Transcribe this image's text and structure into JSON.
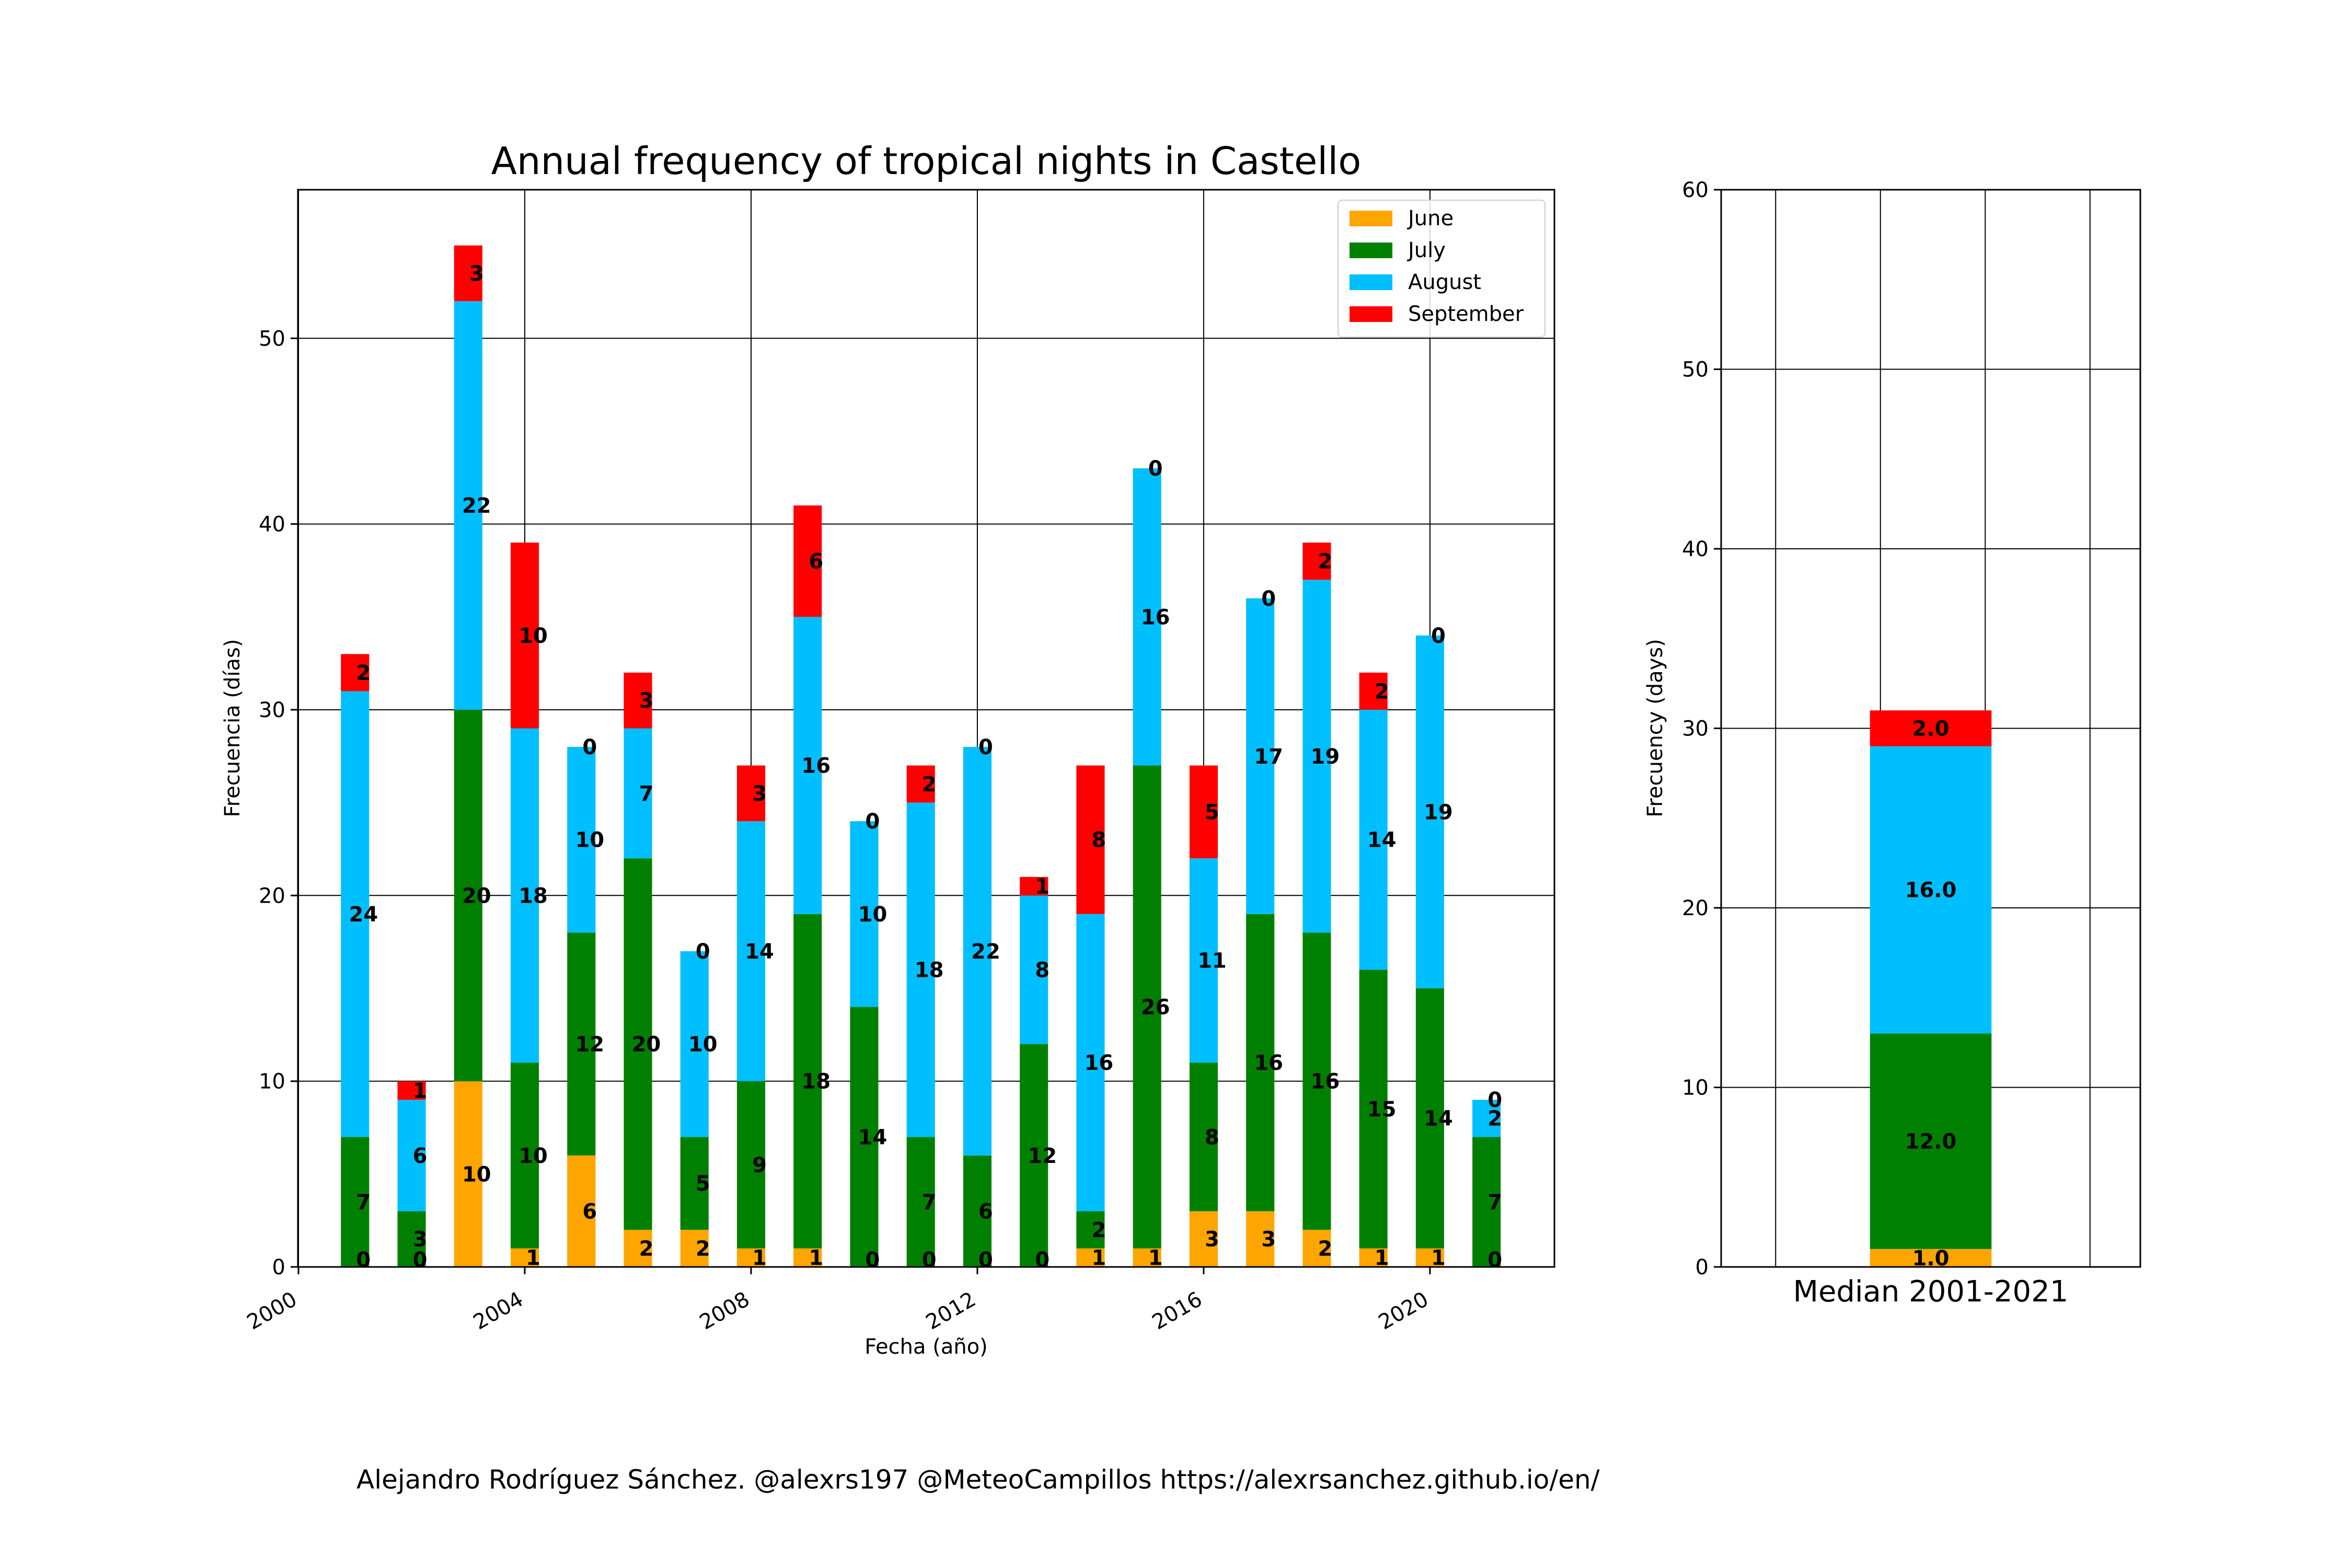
{
  "chart_data": [
    {
      "type": "bar",
      "stacked": true,
      "title": "Annual frequency of tropical nights in Castello",
      "xlabel": "Fecha (año)",
      "ylabel": "Frecuencia (días)",
      "xticks": [
        "2000",
        "2004",
        "2008",
        "2012",
        "2016",
        "2020"
      ],
      "yticks": [
        0,
        10,
        20,
        30,
        40,
        50
      ],
      "xlim": [
        1999.99,
        2022.2
      ],
      "ylim": [
        0,
        58
      ],
      "grid": true,
      "legend_position": "top-right",
      "categories": [
        2001,
        2002,
        2003,
        2004,
        2005,
        2006,
        2007,
        2008,
        2009,
        2010,
        2011,
        2012,
        2013,
        2014,
        2015,
        2016,
        2017,
        2018,
        2019,
        2020,
        2021
      ],
      "series": [
        {
          "name": "June",
          "color": "#ffa500",
          "values": [
            0,
            0,
            10,
            1,
            6,
            2,
            2,
            1,
            1,
            0,
            0,
            0,
            0,
            1,
            1,
            3,
            3,
            2,
            1,
            1,
            0
          ]
        },
        {
          "name": "July",
          "color": "#008000",
          "values": [
            7,
            3,
            20,
            10,
            12,
            20,
            5,
            9,
            18,
            14,
            7,
            6,
            12,
            2,
            26,
            8,
            16,
            16,
            15,
            14,
            7
          ]
        },
        {
          "name": "August",
          "color": "#00bfff",
          "values": [
            24,
            6,
            22,
            18,
            10,
            7,
            10,
            14,
            16,
            10,
            18,
            22,
            8,
            16,
            16,
            11,
            17,
            19,
            14,
            19,
            2
          ]
        },
        {
          "name": "September",
          "color": "#ff0000",
          "values": [
            2,
            1,
            3,
            10,
            0,
            3,
            0,
            3,
            6,
            0,
            2,
            0,
            1,
            8,
            0,
            5,
            0,
            2,
            2,
            0,
            0
          ]
        }
      ]
    },
    {
      "type": "bar",
      "stacked": true,
      "ylabel": "Frecuency (days)",
      "yticks": [
        0,
        10,
        20,
        30,
        40,
        50,
        60
      ],
      "ylim": [
        0,
        60
      ],
      "grid": true,
      "categories": [
        "Median 2001-2021"
      ],
      "series": [
        {
          "name": "June",
          "color": "#ffa500",
          "values": [
            1.0
          ]
        },
        {
          "name": "July",
          "color": "#008000",
          "values": [
            12.0
          ]
        },
        {
          "name": "August",
          "color": "#00bfff",
          "values": [
            16.0
          ]
        },
        {
          "name": "September",
          "color": "#ff0000",
          "values": [
            2.0
          ]
        }
      ]
    }
  ],
  "footer": "Alejandro Rodríguez Sánchez. @alexrs197 @MeteoCampillos   https://alexrsanchez.github.io/en/"
}
